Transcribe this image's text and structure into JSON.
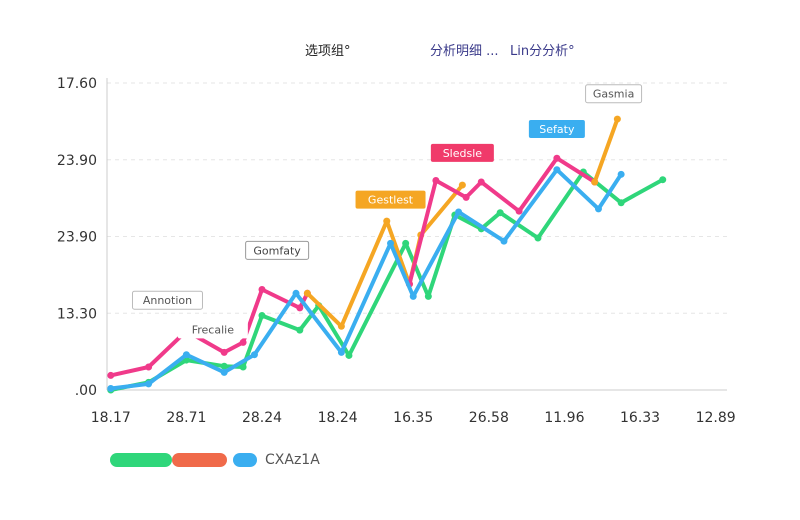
{
  "header": {
    "left_label": "选项组°",
    "middle_label": "分析明细 ...",
    "right_label": "Lin分分析°"
  },
  "legend": {
    "label": "CXAz1A",
    "swatches": [
      {
        "color": "#2fd67a",
        "w": 62
      },
      {
        "color": "#f06a4a",
        "w": 55
      },
      {
        "color": "#3aaef0",
        "w": 24
      }
    ]
  },
  "chart_data": {
    "type": "line",
    "y_ticks": [
      {
        "value": 0,
        "label": ".00"
      },
      {
        "value": 1,
        "label": "13.30"
      },
      {
        "value": 2,
        "label": "23.90"
      },
      {
        "value": 3,
        "label": "23.90"
      },
      {
        "value": 4,
        "label": "17.60"
      }
    ],
    "ylim": [
      0,
      4
    ],
    "x_ticks": [
      {
        "x": 0,
        "label": "18.17"
      },
      {
        "x": 2,
        "label": "28.71"
      },
      {
        "x": 4,
        "label": "28.24"
      },
      {
        "x": 6,
        "label": "18.24"
      },
      {
        "x": 8,
        "label": "16.35"
      },
      {
        "x": 10,
        "label": "26.58"
      },
      {
        "x": 12,
        "label": "11.96"
      },
      {
        "x": 14,
        "label": "16.33"
      },
      {
        "x": 16,
        "label": "12.89"
      }
    ],
    "xlim": [
      -0.1,
      16.3
    ],
    "grid": true,
    "series": [
      {
        "color": "#2fd67a",
        "points": [
          [
            0,
            0
          ],
          [
            1,
            0.1
          ],
          [
            2,
            0.39
          ],
          [
            3,
            0.31
          ],
          [
            3.5,
            0.3
          ],
          [
            4,
            0.97
          ],
          [
            5,
            0.78
          ],
          [
            5.5,
            1.1
          ],
          [
            6.3,
            0.45
          ],
          [
            7.8,
            1.91
          ],
          [
            8.4,
            1.22
          ],
          [
            9.1,
            2.28
          ],
          [
            9.8,
            2.1
          ],
          [
            10.3,
            2.31
          ],
          [
            11.3,
            1.98
          ],
          [
            12.5,
            2.84
          ],
          [
            13.5,
            2.44
          ],
          [
            14.6,
            2.74
          ]
        ]
      },
      {
        "color": "#f03a8a",
        "points": [
          [
            0,
            0.19
          ],
          [
            1,
            0.3
          ],
          [
            2,
            0.77
          ],
          [
            3,
            0.49
          ],
          [
            3.5,
            0.62
          ],
          [
            4,
            1.31
          ],
          [
            5,
            1.07
          ],
          [
            5.2,
            1.26
          ]
        ]
      },
      {
        "color": "#f5a623",
        "points": [
          [
            5.2,
            1.26
          ],
          [
            6.1,
            0.83
          ],
          [
            7.3,
            2.2
          ],
          [
            7.9,
            1.38
          ],
          [
            8.2,
            2.02
          ],
          [
            9.3,
            2.67
          ]
        ]
      },
      {
        "color": "#f03a8a",
        "points": [
          [
            7.9,
            1.38
          ],
          [
            8.6,
            2.73
          ],
          [
            9.4,
            2.51
          ],
          [
            9.8,
            2.71
          ],
          [
            10.8,
            2.33
          ],
          [
            11.8,
            3.02
          ],
          [
            12.8,
            2.71
          ]
        ]
      },
      {
        "color": "#f5a623",
        "points": [
          [
            12.8,
            2.71
          ],
          [
            13.4,
            3.53
          ]
        ]
      },
      {
        "color": "#3aaef0",
        "points": [
          [
            0,
            0.02
          ],
          [
            1,
            0.08
          ],
          [
            2,
            0.46
          ],
          [
            3,
            0.23
          ],
          [
            3.8,
            0.46
          ],
          [
            4.9,
            1.26
          ],
          [
            6.1,
            0.49
          ],
          [
            7.4,
            1.91
          ],
          [
            8,
            1.22
          ],
          [
            9.2,
            2.32
          ],
          [
            10.4,
            1.94
          ],
          [
            11.8,
            2.87
          ],
          [
            12.9,
            2.36
          ],
          [
            13.5,
            2.81
          ]
        ]
      }
    ],
    "annotations": [
      {
        "x": 1.5,
        "y": 1.17,
        "text": "Annotion",
        "color": "#555555",
        "border": "#bbbbbb",
        "fill": "#ffffff"
      },
      {
        "x": 2.7,
        "y": 0.79,
        "text": "Frecalie",
        "color": "#555555",
        "border": "none",
        "fill": "#ffffff"
      },
      {
        "x": 4.4,
        "y": 1.82,
        "text": "Gomfaty",
        "color": "#444444",
        "border": "#999999",
        "fill": "#ffffff"
      },
      {
        "x": 7.4,
        "y": 2.48,
        "text": "Gestlest",
        "color": "#ffffff",
        "border": "none",
        "fill": "#f5a623"
      },
      {
        "x": 9.3,
        "y": 3.09,
        "text": "Sledsle",
        "color": "#ffffff",
        "border": "none",
        "fill": "#f03a6a"
      },
      {
        "x": 11.8,
        "y": 3.4,
        "text": "Sefaty",
        "color": "#ffffff",
        "border": "none",
        "fill": "#3aaef0"
      },
      {
        "x": 13.3,
        "y": 3.86,
        "text": "Gasmia",
        "color": "#555555",
        "border": "#bbbbbb",
        "fill": "#ffffff"
      }
    ]
  }
}
